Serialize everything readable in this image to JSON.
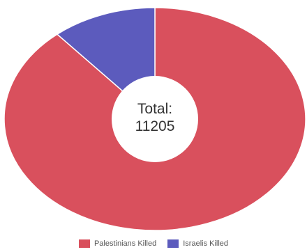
{
  "chart_data": {
    "type": "pie",
    "style": "donut",
    "center_label": "Total:",
    "center_value": "11205",
    "total": 11205,
    "slices": [
      {
        "label": "Palestinians Killed",
        "value": 9947,
        "color": "#d9505d"
      },
      {
        "label": "Israelis Killed",
        "value": 1258,
        "color": "#5c5bbd"
      }
    ],
    "legend_position": "bottom"
  }
}
